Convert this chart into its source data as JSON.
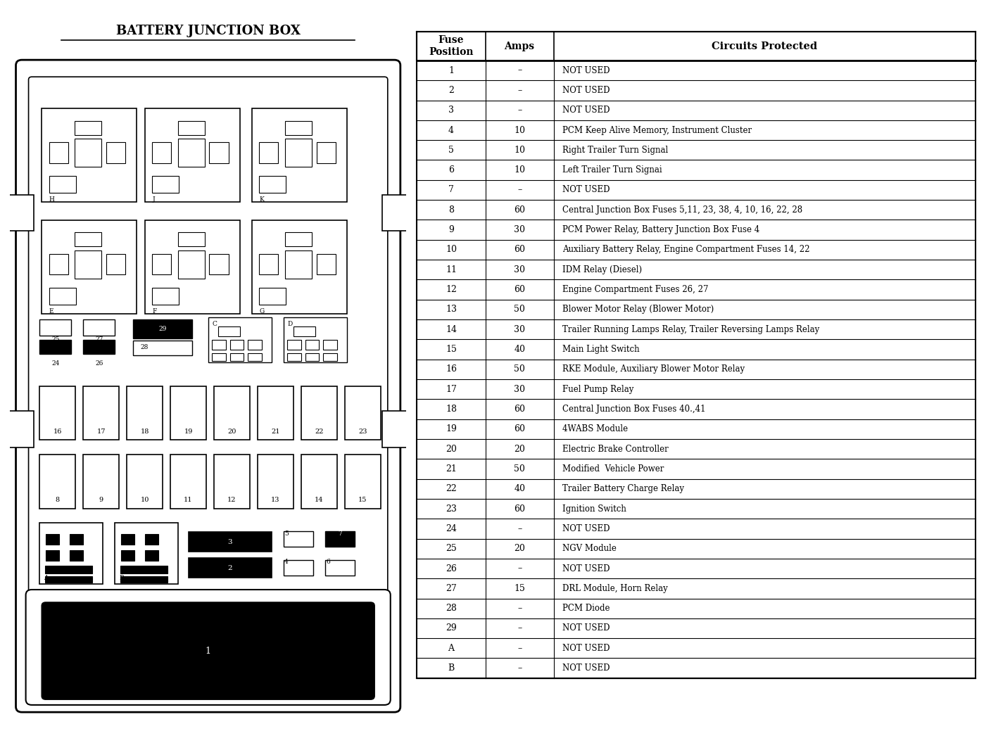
{
  "title_left": "BATTERY JUNCTION BOX",
  "table_data": [
    [
      "1",
      "–",
      "NOT USED"
    ],
    [
      "2",
      "–",
      "NOT USED"
    ],
    [
      "3",
      "–",
      "NOT USED"
    ],
    [
      "4",
      "10",
      "PCM Keep Alive Memory, Instrument Cluster"
    ],
    [
      "5",
      "10",
      "Right Trailer Turn Signal"
    ],
    [
      "6",
      "10",
      "Left Trailer Turn Signai"
    ],
    [
      "7",
      "–",
      "NOT USED"
    ],
    [
      "8",
      "60",
      "Central Junction Box Fuses 5,11, 23, 38, 4, 10, 16, 22, 28"
    ],
    [
      "9",
      "30",
      "PCM Power Relay, Battery Junction Box Fuse 4"
    ],
    [
      "10",
      "60",
      "Auxiliary Battery Relay, Engine Compartment Fuses 14, 22"
    ],
    [
      "11",
      "30",
      "IDM Relay (Diesel)"
    ],
    [
      "12",
      "60",
      "Engine Compartment Fuses 26, 27"
    ],
    [
      "13",
      "50",
      "Blower Motor Relay (Blower Motor)"
    ],
    [
      "14",
      "30",
      "Trailer Running Lamps Relay, Trailer Reversing Lamps Relay"
    ],
    [
      "15",
      "40",
      "Main Light Switch"
    ],
    [
      "16",
      "50",
      "RKE Module, Auxiliary Blower Motor Relay"
    ],
    [
      "17",
      "30",
      "Fuel Pump Relay"
    ],
    [
      "18",
      "60",
      "Central Junction Box Fuses 40.,41"
    ],
    [
      "19",
      "60",
      "4WABS Module"
    ],
    [
      "20",
      "20",
      "Electric Brake Controller"
    ],
    [
      "21",
      "50",
      "Modified  Vehicle Power"
    ],
    [
      "22",
      "40",
      "Trailer Battery Charge Relay"
    ],
    [
      "23",
      "60",
      "Ignition Switch"
    ],
    [
      "24",
      "–",
      "NOT USED"
    ],
    [
      "25",
      "20",
      "NGV Module"
    ],
    [
      "26",
      "–",
      "NOT USED"
    ],
    [
      "27",
      "15",
      "DRL Module, Horn Relay"
    ],
    [
      "28",
      "–",
      "PCM Diode"
    ],
    [
      "29",
      "–",
      "NOT USED"
    ],
    [
      "A",
      "–",
      "NOT USED"
    ],
    [
      "B",
      "–",
      "NOT USED"
    ]
  ],
  "bg_color": "#ffffff",
  "border_color": "#000000",
  "text_color": "#000000"
}
